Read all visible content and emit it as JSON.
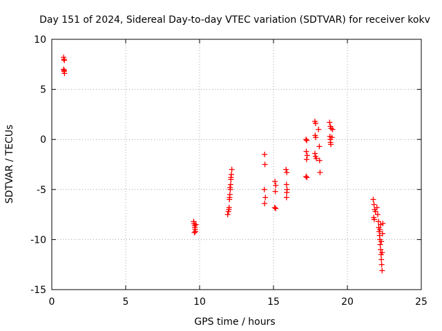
{
  "chart_data": {
    "type": "scatter",
    "title": "Day 151 of 2024, Sidereal Day-to-day VTEC variation (SDTVAR) for receiver kokv",
    "xlabel": "GPS time / hours",
    "ylabel": "SDTVAR / TECUs",
    "xlim": [
      0,
      25
    ],
    "ylim": [
      -15,
      10
    ],
    "xticks": [
      0,
      5,
      10,
      15,
      20,
      25
    ],
    "yticks": [
      -15,
      -10,
      -5,
      0,
      5,
      10
    ],
    "grid": true,
    "marker": "+",
    "marker_color": "#ff0000",
    "series": [
      {
        "name": "SDTVAR",
        "points": [
          [
            0.8,
            8.2
          ],
          [
            0.82,
            8.0
          ],
          [
            0.85,
            7.9
          ],
          [
            0.8,
            7.0
          ],
          [
            0.83,
            6.8
          ],
          [
            0.86,
            6.6
          ],
          [
            0.84,
            6.9
          ],
          [
            9.6,
            -8.2
          ],
          [
            9.63,
            -8.4
          ],
          [
            9.66,
            -8.6
          ],
          [
            9.68,
            -8.8
          ],
          [
            9.7,
            -9.0
          ],
          [
            9.72,
            -9.2
          ],
          [
            9.65,
            -9.3
          ],
          [
            9.75,
            -8.5
          ],
          [
            11.9,
            -7.5
          ],
          [
            11.95,
            -7.2
          ],
          [
            12.0,
            -6.8
          ],
          [
            12.02,
            -6.0
          ],
          [
            12.05,
            -5.5
          ],
          [
            12.08,
            -5.0
          ],
          [
            12.1,
            -4.5
          ],
          [
            12.12,
            -4.0
          ],
          [
            12.15,
            -3.5
          ],
          [
            12.18,
            -3.0
          ],
          [
            11.98,
            -7.0
          ],
          [
            12.03,
            -5.8
          ],
          [
            12.06,
            -4.8
          ],
          [
            12.12,
            -3.8
          ],
          [
            14.4,
            -1.5
          ],
          [
            14.42,
            -2.5
          ],
          [
            14.38,
            -5.0
          ],
          [
            14.45,
            -5.8
          ],
          [
            14.4,
            -6.4
          ],
          [
            15.1,
            -4.2
          ],
          [
            15.15,
            -4.6
          ],
          [
            15.12,
            -5.2
          ],
          [
            15.08,
            -6.8
          ],
          [
            15.15,
            -6.9
          ],
          [
            15.85,
            -3.0
          ],
          [
            15.9,
            -3.3
          ],
          [
            15.88,
            -4.5
          ],
          [
            15.92,
            -5.0
          ],
          [
            15.9,
            -5.3
          ],
          [
            15.88,
            -5.8
          ],
          [
            17.2,
            0.0
          ],
          [
            17.25,
            -0.1
          ],
          [
            17.22,
            -1.2
          ],
          [
            17.28,
            -1.6
          ],
          [
            17.24,
            -2.0
          ],
          [
            17.2,
            -3.7
          ],
          [
            17.26,
            -3.8
          ],
          [
            17.8,
            1.8
          ],
          [
            17.85,
            1.6
          ],
          [
            17.82,
            0.4
          ],
          [
            17.86,
            0.2
          ],
          [
            17.8,
            -1.4
          ],
          [
            17.84,
            -1.7
          ],
          [
            17.9,
            -1.9
          ],
          [
            18.05,
            1.0
          ],
          [
            18.1,
            -0.7
          ],
          [
            18.12,
            -2.1
          ],
          [
            18.15,
            -3.3
          ],
          [
            18.8,
            1.7
          ],
          [
            18.85,
            1.3
          ],
          [
            18.9,
            1.1
          ],
          [
            18.82,
            0.3
          ],
          [
            18.84,
            0.0
          ],
          [
            18.86,
            -0.3
          ],
          [
            18.88,
            -0.5
          ],
          [
            18.95,
            0.2
          ],
          [
            19.0,
            1.0
          ],
          [
            21.75,
            -6.0
          ],
          [
            21.8,
            -6.5
          ],
          [
            21.85,
            -7.0
          ],
          [
            21.78,
            -7.8
          ],
          [
            21.82,
            -8.0
          ],
          [
            21.9,
            -7.2
          ],
          [
            22.0,
            -6.8
          ],
          [
            22.05,
            -7.5
          ],
          [
            22.1,
            -8.2
          ],
          [
            22.12,
            -8.8
          ],
          [
            22.15,
            -9.2
          ],
          [
            22.18,
            -9.6
          ],
          [
            22.2,
            -10.0
          ],
          [
            22.22,
            -10.5
          ],
          [
            22.25,
            -11.0
          ],
          [
            22.28,
            -11.5
          ],
          [
            22.3,
            -12.0
          ],
          [
            22.32,
            -12.5
          ],
          [
            22.35,
            -13.1
          ],
          [
            22.2,
            -9.0
          ],
          [
            22.25,
            -8.5
          ],
          [
            22.3,
            -10.2
          ],
          [
            22.35,
            -11.3
          ],
          [
            22.38,
            -9.4
          ],
          [
            22.4,
            -8.4
          ]
        ]
      }
    ]
  }
}
